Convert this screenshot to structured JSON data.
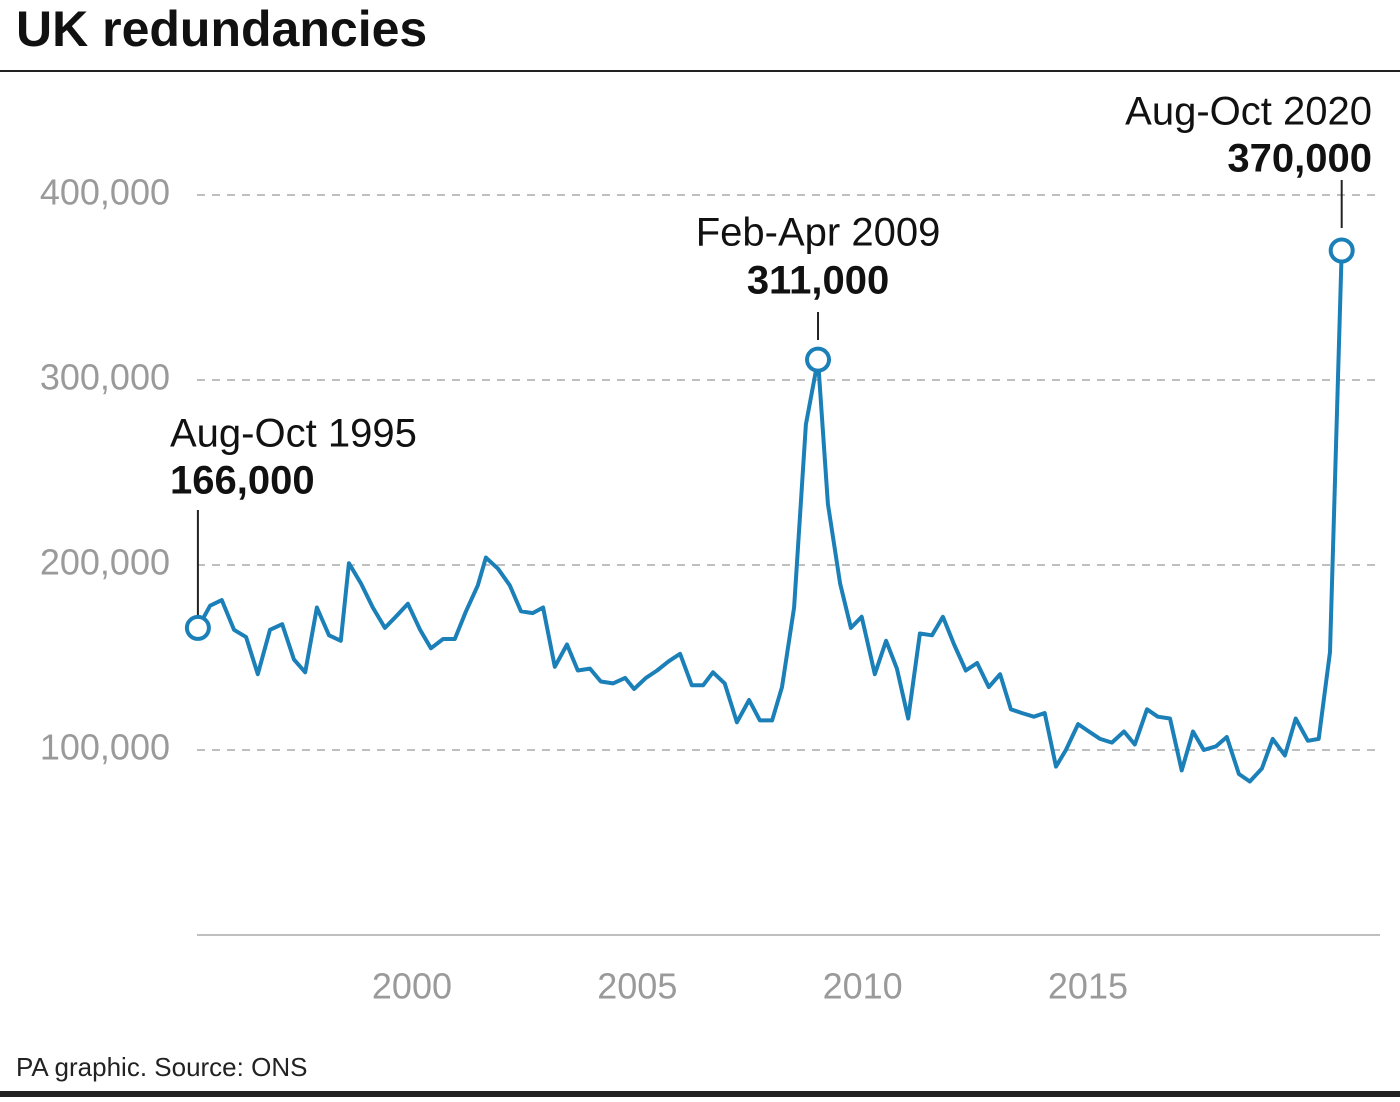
{
  "chart_data": {
    "type": "line",
    "title": "UK redundancies",
    "source": "PA graphic. Source: ONS",
    "color": "#1b7fb8",
    "grid": true,
    "xlim": [
      1995.23,
      2021.48
    ],
    "ylim": [
      0,
      400000
    ],
    "xticks": [
      2000,
      2005,
      2010,
      2015
    ],
    "yticks": [
      {
        "value": 100000,
        "label": "100,000"
      },
      {
        "value": 200000,
        "label": "200,000"
      },
      {
        "value": 300000,
        "label": "300,000"
      },
      {
        "value": 400000,
        "label": "400,000"
      }
    ],
    "x": [
      1995.25,
      1995.52,
      1995.78,
      1996.05,
      1996.32,
      1996.58,
      1996.85,
      1997.12,
      1997.38,
      1997.63,
      1997.89,
      1998.16,
      1998.42,
      1998.6,
      1998.87,
      1999.13,
      1999.4,
      1999.64,
      1999.91,
      2000.18,
      2000.42,
      2000.69,
      2000.95,
      2001.2,
      2001.46,
      2001.64,
      2001.91,
      2002.17,
      2002.42,
      2002.68,
      2002.91,
      2003.17,
      2003.44,
      2003.68,
      2003.95,
      2004.19,
      2004.46,
      2004.73,
      2004.93,
      2005.19,
      2005.44,
      2005.7,
      2005.95,
      2006.21,
      2006.46,
      2006.68,
      2006.94,
      2007.21,
      2007.48,
      2007.72,
      2007.99,
      2008.21,
      2008.48,
      2008.74,
      2009.01,
      2009.23,
      2009.5,
      2009.74,
      2009.98,
      2010.27,
      2010.52,
      2010.76,
      2011.01,
      2011.27,
      2011.54,
      2011.78,
      2012.03,
      2012.29,
      2012.54,
      2012.8,
      2013.05,
      2013.29,
      2013.53,
      2013.8,
      2014.04,
      2014.29,
      2014.51,
      2014.78,
      2015.02,
      2015.27,
      2015.53,
      2015.8,
      2016.04,
      2016.31,
      2016.55,
      2016.82,
      2017.08,
      2017.33,
      2017.57,
      2017.84,
      2018.08,
      2018.35,
      2018.59,
      2018.86,
      2019.1,
      2019.37,
      2019.61,
      2019.88,
      2020.12,
      2020.37,
      2020.63
    ],
    "values": [
      166000,
      178000,
      181000,
      165000,
      161000,
      141000,
      165000,
      168000,
      149000,
      142000,
      177000,
      162000,
      159000,
      201000,
      190000,
      177000,
      166000,
      172000,
      179000,
      165000,
      155000,
      160000,
      160000,
      175000,
      189000,
      204000,
      198000,
      189000,
      175000,
      174000,
      177000,
      145000,
      157000,
      143000,
      144000,
      137000,
      136000,
      139000,
      133000,
      139000,
      143000,
      148000,
      152000,
      135000,
      135000,
      142000,
      136000,
      115000,
      127000,
      116000,
      116000,
      134000,
      177000,
      276000,
      311000,
      233000,
      190000,
      166000,
      172000,
      141000,
      159000,
      144000,
      117000,
      163000,
      162000,
      172000,
      157000,
      143000,
      147000,
      134000,
      141000,
      122000,
      120000,
      118000,
      120000,
      91000,
      100000,
      114000,
      110000,
      106000,
      104000,
      110000,
      103000,
      122000,
      118000,
      117000,
      89000,
      110000,
      100000,
      102000,
      107000,
      87000,
      83000,
      90000,
      106000,
      97000,
      117000,
      105000,
      106000,
      153000,
      370000
    ],
    "annotations": [
      {
        "label": "Aug-Oct 1995",
        "x": 1995.25,
        "value": 166000,
        "value_label": "166,000"
      },
      {
        "label": "Feb-Apr 2009",
        "x": 2009.01,
        "value": 311000,
        "value_label": "311,000"
      },
      {
        "label": "Aug-Oct 2020",
        "x": 2020.63,
        "value": 370000,
        "value_label": "370,000"
      }
    ]
  }
}
